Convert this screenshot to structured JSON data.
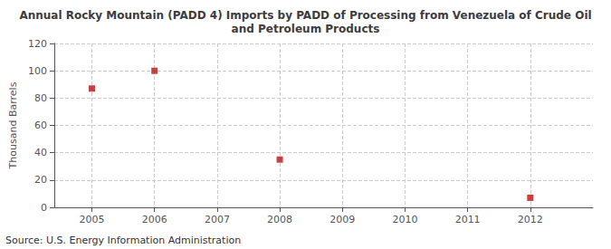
{
  "chart_data": {
    "type": "scatter",
    "title": "Annual Rocky Mountain (PADD 4) Imports by PADD of Processing from Venezuela of Crude Oil\nand Petroleum Products",
    "ylabel": "Thousand Barrels",
    "annotations": [
      "Source: U.S. Energy Information Administration"
    ],
    "x": [
      2005,
      2006,
      2008,
      2012
    ],
    "values": [
      87,
      100,
      35,
      7
    ],
    "color": "#bb1111",
    "marker": "square",
    "xlim": [
      2004.4,
      2013.0
    ],
    "xticks": [
      2005,
      2006,
      2007,
      2008,
      2009,
      2010,
      2011,
      2012
    ],
    "ylim": [
      0,
      120
    ],
    "yticks": [
      0,
      20,
      40,
      60,
      80,
      100,
      120
    ],
    "grid": true
  }
}
